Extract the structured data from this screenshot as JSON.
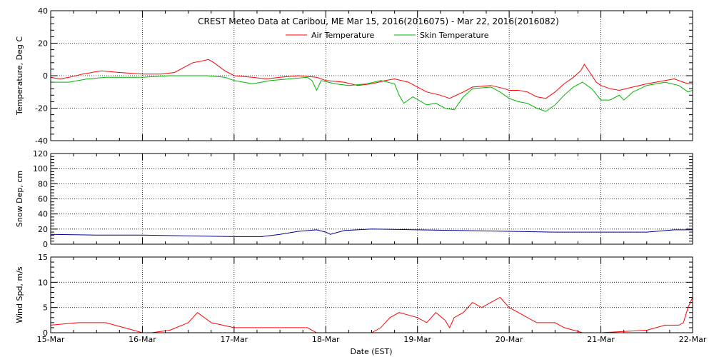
{
  "chart_data": {
    "title": "CREST Meteo Data at Caribou, ME   Mar 15, 2016(2016075) - Mar 22, 2016(2016082)",
    "xlabel": "Date (EST)",
    "x_ticks": [
      "15-Mar",
      "16-Mar",
      "17-Mar",
      "18-Mar",
      "19-Mar",
      "20-Mar",
      "21-Mar",
      "22-Mar"
    ],
    "x_range_days": [
      0,
      7
    ],
    "panels": [
      {
        "type": "line",
        "ylabel": "Temperature, Deg C",
        "ylim": [
          -40,
          40
        ],
        "yticks": [
          -40,
          -20,
          0,
          20,
          40
        ],
        "grid": true,
        "legend": "top-center",
        "series": [
          {
            "name": "Air Temperature",
            "color": "#ff0000",
            "points": [
              [
                0,
                -1
              ],
              [
                0.1,
                -2
              ],
              [
                0.2,
                -1
              ],
              [
                0.35,
                1
              ],
              [
                0.55,
                3
              ],
              [
                0.75,
                2
              ],
              [
                1.0,
                1
              ],
              [
                1.2,
                1
              ],
              [
                1.35,
                2
              ],
              [
                1.45,
                5
              ],
              [
                1.55,
                8
              ],
              [
                1.65,
                9
              ],
              [
                1.72,
                10
              ],
              [
                1.78,
                8
              ],
              [
                1.9,
                3
              ],
              [
                2.0,
                0
              ],
              [
                2.2,
                -1
              ],
              [
                2.35,
                -2
              ],
              [
                2.5,
                -1
              ],
              [
                2.7,
                0
              ],
              [
                2.9,
                -1
              ],
              [
                3.0,
                -3
              ],
              [
                3.2,
                -4
              ],
              [
                3.35,
                -6
              ],
              [
                3.5,
                -5
              ],
              [
                3.65,
                -3
              ],
              [
                3.75,
                -2
              ],
              [
                3.9,
                -4
              ],
              [
                4.0,
                -7
              ],
              [
                4.1,
                -10
              ],
              [
                4.25,
                -12
              ],
              [
                4.35,
                -14
              ],
              [
                4.5,
                -10
              ],
              [
                4.6,
                -7
              ],
              [
                4.8,
                -6
              ],
              [
                4.95,
                -8
              ],
              [
                5.0,
                -9
              ],
              [
                5.1,
                -9
              ],
              [
                5.2,
                -10
              ],
              [
                5.3,
                -13
              ],
              [
                5.4,
                -14
              ],
              [
                5.5,
                -10
              ],
              [
                5.6,
                -5
              ],
              [
                5.7,
                -1
              ],
              [
                5.78,
                3
              ],
              [
                5.82,
                7
              ],
              [
                5.88,
                2
              ],
              [
                5.95,
                -4
              ],
              [
                6.0,
                -6
              ],
              [
                6.1,
                -8
              ],
              [
                6.2,
                -9
              ],
              [
                6.35,
                -7
              ],
              [
                6.5,
                -5
              ],
              [
                6.7,
                -3
              ],
              [
                6.8,
                -2
              ],
              [
                6.95,
                -5
              ],
              [
                7.0,
                -5
              ]
            ]
          },
          {
            "name": "Skin Temperature",
            "color": "#00b400",
            "points": [
              [
                0,
                -4
              ],
              [
                0.2,
                -4
              ],
              [
                0.4,
                -2
              ],
              [
                0.6,
                -1
              ],
              [
                0.8,
                -1
              ],
              [
                1.0,
                -1
              ],
              [
                1.3,
                0
              ],
              [
                1.5,
                0
              ],
              [
                1.7,
                0
              ],
              [
                1.9,
                -1
              ],
              [
                2.0,
                -3
              ],
              [
                2.2,
                -5
              ],
              [
                2.4,
                -3
              ],
              [
                2.6,
                -2
              ],
              [
                2.8,
                -1
              ],
              [
                2.85,
                -3
              ],
              [
                2.9,
                -9
              ],
              [
                2.95,
                -3
              ],
              [
                3.1,
                -5
              ],
              [
                3.25,
                -6
              ],
              [
                3.45,
                -5
              ],
              [
                3.6,
                -3
              ],
              [
                3.75,
                -5
              ],
              [
                3.8,
                -12
              ],
              [
                3.85,
                -17
              ],
              [
                3.95,
                -13
              ],
              [
                4.1,
                -18
              ],
              [
                4.2,
                -17
              ],
              [
                4.3,
                -20
              ],
              [
                4.4,
                -21
              ],
              [
                4.5,
                -13
              ],
              [
                4.6,
                -8
              ],
              [
                4.8,
                -7
              ],
              [
                4.9,
                -10
              ],
              [
                5.0,
                -14
              ],
              [
                5.1,
                -16
              ],
              [
                5.2,
                -17
              ],
              [
                5.3,
                -20
              ],
              [
                5.4,
                -22
              ],
              [
                5.5,
                -18
              ],
              [
                5.6,
                -12
              ],
              [
                5.7,
                -7
              ],
              [
                5.8,
                -4
              ],
              [
                5.9,
                -8
              ],
              [
                6.0,
                -15
              ],
              [
                6.1,
                -15
              ],
              [
                6.2,
                -12
              ],
              [
                6.25,
                -15
              ],
              [
                6.35,
                -10
              ],
              [
                6.5,
                -6
              ],
              [
                6.7,
                -4
              ],
              [
                6.85,
                -6
              ],
              [
                6.95,
                -10
              ],
              [
                7.0,
                -9
              ]
            ]
          }
        ]
      },
      {
        "type": "line",
        "ylabel": "Snow Dep, cm",
        "ylim": [
          0,
          120
        ],
        "yticks": [
          0,
          20,
          40,
          60,
          80,
          100,
          120
        ],
        "grid": true,
        "series": [
          {
            "color": "#00008b",
            "points": [
              [
                0,
                13
              ],
              [
                0.5,
                12
              ],
              [
                1.0,
                12
              ],
              [
                1.5,
                11
              ],
              [
                2.0,
                10
              ],
              [
                2.3,
                10
              ],
              [
                2.5,
                13
              ],
              [
                2.7,
                17
              ],
              [
                2.9,
                19
              ],
              [
                3.0,
                16
              ],
              [
                3.05,
                13
              ],
              [
                3.2,
                18
              ],
              [
                3.5,
                20
              ],
              [
                4.0,
                19
              ],
              [
                4.5,
                18
              ],
              [
                5.0,
                17
              ],
              [
                5.5,
                16
              ],
              [
                6.0,
                16
              ],
              [
                6.5,
                16
              ],
              [
                6.8,
                19
              ],
              [
                7.0,
                19
              ]
            ]
          }
        ]
      },
      {
        "type": "line",
        "ylabel": "Wind Spd, m/s",
        "ylim": [
          0,
          15
        ],
        "yticks": [
          0,
          5,
          10,
          15
        ],
        "grid": true,
        "series": [
          {
            "color": "#ff0000",
            "points": [
              [
                0,
                1.5
              ],
              [
                0.3,
                2
              ],
              [
                0.6,
                2
              ],
              [
                0.8,
                1
              ],
              [
                1.0,
                0
              ],
              [
                1.1,
                0
              ],
              [
                1.3,
                0.5
              ],
              [
                1.5,
                2
              ],
              [
                1.6,
                4
              ],
              [
                1.75,
                2
              ],
              [
                2.0,
                1
              ],
              [
                2.5,
                1
              ],
              [
                2.8,
                1
              ],
              [
                2.9,
                0
              ],
              [
                3.0,
                0
              ],
              [
                3.5,
                0
              ],
              [
                3.6,
                1
              ],
              [
                3.7,
                3
              ],
              [
                3.8,
                4
              ],
              [
                4.0,
                3
              ],
              [
                4.1,
                2
              ],
              [
                4.2,
                4
              ],
              [
                4.3,
                2.5
              ],
              [
                4.35,
                1
              ],
              [
                4.4,
                3
              ],
              [
                4.5,
                4
              ],
              [
                4.6,
                6
              ],
              [
                4.7,
                5
              ],
              [
                4.8,
                6
              ],
              [
                4.9,
                7
              ],
              [
                5.0,
                5
              ],
              [
                5.1,
                4
              ],
              [
                5.2,
                3
              ],
              [
                5.3,
                2
              ],
              [
                5.5,
                2
              ],
              [
                5.6,
                1
              ],
              [
                5.8,
                0
              ],
              [
                6.0,
                0
              ],
              [
                6.5,
                0.5
              ],
              [
                6.7,
                1.5
              ],
              [
                6.85,
                1.5
              ],
              [
                6.9,
                2
              ],
              [
                6.95,
                5
              ],
              [
                7.0,
                7
              ]
            ]
          }
        ]
      }
    ]
  }
}
